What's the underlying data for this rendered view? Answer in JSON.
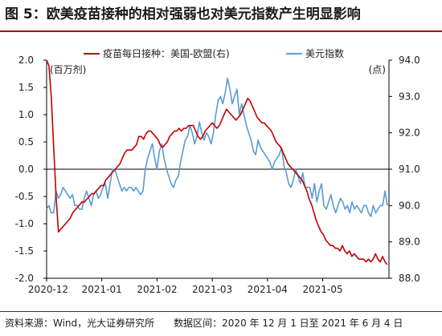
{
  "title": "图 5：欧美疫苗接种的相对强弱也对美元指数产生明显影响",
  "source": "资料来源：Wind，光大证券研究所　　数据区间：2020 年 12 月 1 日至 2021 年 6 月 4 日",
  "chart_data": {
    "type": "line",
    "left_unit": "(百万剂)",
    "right_unit": "(点)",
    "left_ylim": [
      -2.0,
      2.0
    ],
    "left_ticks": [
      "2.0",
      "1.5",
      "1.0",
      "0.5",
      "0.0",
      "-0.5",
      "-1.0",
      "-1.5",
      "-2.0"
    ],
    "right_ylim": [
      88.0,
      94.0
    ],
    "right_ticks": [
      "94.0",
      "93.0",
      "92.0",
      "91.0",
      "90.0",
      "89.0",
      "88.0"
    ],
    "x_ticks": [
      "2020-12",
      "2021-01",
      "2021-02",
      "2021-03",
      "2021-04",
      "2021-05"
    ],
    "legend_position": "top",
    "colors": {
      "vaccine": "#c00000",
      "usd": "#5b9bd5"
    },
    "series": [
      {
        "name": "疫苗每日接种：美国-欧盟(右)",
        "axis": "left",
        "values": [
          2.0,
          1.9,
          1.3,
          0.4,
          -0.5,
          -1.15,
          -1.1,
          -1.05,
          -1.0,
          -0.95,
          -0.9,
          -0.8,
          -0.75,
          -0.7,
          -0.65,
          -0.6,
          -0.6,
          -0.55,
          -0.5,
          -0.45,
          -0.45,
          -0.4,
          -0.35,
          -0.3,
          -0.3,
          -0.2,
          -0.15,
          -0.1,
          -0.05,
          0.0,
          0.05,
          0.1,
          0.2,
          0.3,
          0.35,
          0.35,
          0.35,
          0.4,
          0.45,
          0.6,
          0.6,
          0.55,
          0.65,
          0.7,
          0.7,
          0.65,
          0.6,
          0.55,
          0.45,
          0.4,
          0.45,
          0.5,
          0.6,
          0.65,
          0.7,
          0.7,
          0.75,
          0.7,
          0.75,
          0.75,
          0.8,
          0.8,
          0.8,
          0.7,
          0.6,
          0.55,
          0.6,
          0.7,
          0.75,
          0.8,
          0.85,
          0.8,
          0.75,
          0.8,
          0.9,
          1.0,
          1.1,
          1.05,
          1.0,
          0.95,
          0.9,
          0.95,
          1.0,
          1.1,
          1.2,
          1.3,
          1.25,
          1.15,
          1.05,
          0.95,
          0.9,
          0.85,
          0.85,
          0.8,
          0.75,
          0.7,
          0.6,
          0.5,
          0.45,
          0.4,
          0.3,
          0.2,
          0.1,
          0.05,
          0.0,
          -0.05,
          -0.1,
          -0.15,
          -0.2,
          -0.3,
          -0.4,
          -0.55,
          -0.65,
          -0.8,
          -0.95,
          -1.05,
          -1.15,
          -1.2,
          -1.3,
          -1.35,
          -1.4,
          -1.4,
          -1.45,
          -1.45,
          -1.5,
          -1.4,
          -1.5,
          -1.55,
          -1.5,
          -1.6,
          -1.55,
          -1.6,
          -1.65,
          -1.65,
          -1.65,
          -1.7,
          -1.65,
          -1.7,
          -1.65,
          -1.55,
          -1.65,
          -1.7,
          -1.6,
          -1.7,
          -1.75
        ]
      },
      {
        "name": "美元指数",
        "axis": "right",
        "values": [
          89.9,
          90.0,
          89.8,
          89.8,
          90.4,
          90.2,
          90.3,
          90.5,
          90.4,
          90.3,
          90.2,
          90.3,
          90.0,
          90.0,
          89.9,
          89.9,
          90.2,
          90.4,
          90.2,
          90.0,
          90.3,
          90.4,
          90.2,
          90.3,
          90.5,
          90.6,
          90.2,
          90.6,
          91.0,
          91.0,
          90.8,
          90.6,
          90.4,
          90.5,
          90.4,
          90.5,
          90.5,
          90.4,
          90.5,
          90.4,
          90.3,
          90.4,
          91.0,
          91.3,
          91.5,
          91.7,
          91.3,
          91.0,
          91.5,
          91.7,
          91.3,
          91.0,
          90.8,
          90.6,
          90.5,
          90.7,
          90.8,
          91.2,
          91.5,
          91.8,
          91.9,
          92.2,
          92.0,
          91.7,
          91.9,
          92.3,
          92.0,
          91.8,
          92.0,
          91.9,
          91.7,
          92.0,
          92.5,
          92.9,
          93.0,
          92.8,
          93.1,
          93.5,
          93.2,
          92.8,
          93.0,
          93.2,
          92.5,
          92.8,
          92.5,
          92.2,
          92.0,
          91.8,
          91.5,
          91.4,
          91.8,
          91.6,
          91.5,
          91.4,
          91.3,
          91.2,
          91.0,
          91.2,
          91.3,
          91.4,
          91.6,
          91.1,
          90.9,
          90.6,
          90.5,
          90.7,
          91.0,
          90.8,
          90.6,
          90.9,
          90.5,
          90.5,
          90.5,
          90.2,
          90.6,
          90.1,
          90.4,
          90.6,
          90.0,
          89.9,
          90.1,
          90.3,
          90.0,
          89.8,
          90.0,
          90.2,
          90.1,
          89.9,
          90.0,
          89.8,
          90.1,
          89.9,
          90.0,
          89.9,
          89.8,
          90.0,
          90.0,
          89.8,
          89.7,
          90.0,
          89.8,
          89.9,
          90.0,
          90.0,
          90.4,
          90.0
        ]
      }
    ]
  }
}
